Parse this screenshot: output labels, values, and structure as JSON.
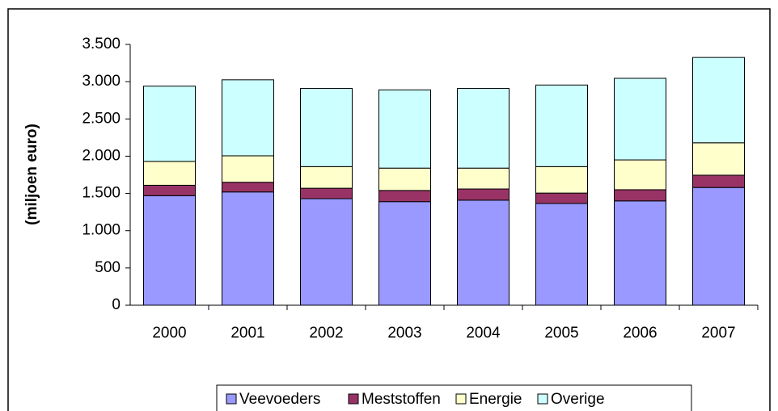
{
  "chart_data": {
    "type": "stacked_bar",
    "y_label": "(miljoen euro)",
    "categories": [
      "2000",
      "2001",
      "2002",
      "2003",
      "2004",
      "2005",
      "2006",
      "2007"
    ],
    "series": [
      {
        "name": "Veevoeders",
        "color": "#9999ff",
        "values": [
          1470,
          1520,
          1430,
          1390,
          1410,
          1365,
          1400,
          1580
        ]
      },
      {
        "name": "Meststoffen",
        "color": "#993366",
        "values": [
          140,
          130,
          140,
          150,
          150,
          140,
          150,
          165
        ]
      },
      {
        "name": "Energie",
        "color": "#ffffcc",
        "values": [
          320,
          355,
          290,
          300,
          280,
          355,
          400,
          435
        ]
      },
      {
        "name": "Overige",
        "color": "#ccffff",
        "values": [
          1010,
          1020,
          1050,
          1050,
          1070,
          1095,
          1095,
          1145
        ]
      }
    ],
    "ylim": [
      0,
      3500
    ],
    "yticks": [
      0,
      500,
      {
        "value": 1000,
        "label": "1.000"
      },
      {
        "value": 1500,
        "label": "1.500"
      },
      {
        "value": 2000,
        "label": "2.000"
      },
      {
        "value": 2500,
        "label": "2.500"
      },
      {
        "value": 3000,
        "label": "3.000"
      },
      {
        "value": 3500,
        "label": "3.500"
      }
    ],
    "legend": "bottom"
  }
}
